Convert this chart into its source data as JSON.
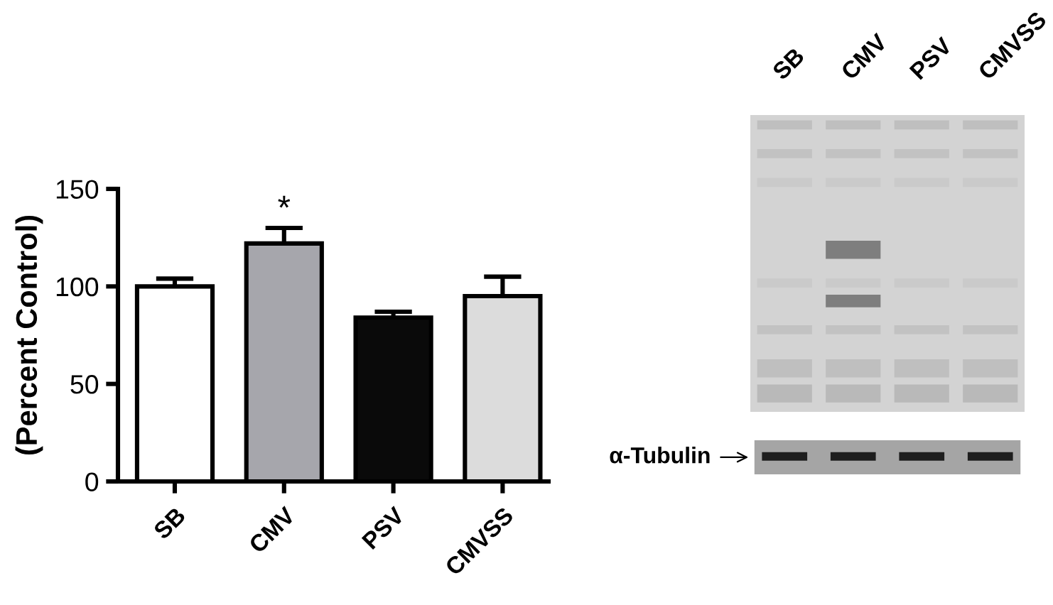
{
  "chart_data": [
    {
      "type": "bar",
      "ylabel": "(Percent Control)",
      "categories": [
        "SB",
        "CMV",
        "PSV",
        "CMVSS"
      ],
      "values": [
        100,
        122,
        84,
        95
      ],
      "colors": [
        "#ffffff",
        "#a6a6ac",
        "#0a0a0a",
        "#dcdcdc"
      ],
      "errors": [
        [
          100,
          104
        ],
        [
          122,
          130
        ],
        [
          84,
          87
        ],
        [
          95,
          105
        ]
      ],
      "ylim": [
        0,
        150
      ],
      "yticks": [
        0,
        50,
        100,
        150
      ],
      "annotations": [
        "*"
      ]
    },
    {
      "type": "other",
      "categories": [
        "SB",
        "CMV",
        "PSV",
        "CMVSS"
      ],
      "annotations": [
        "α-Tubulin"
      ]
    }
  ]
}
